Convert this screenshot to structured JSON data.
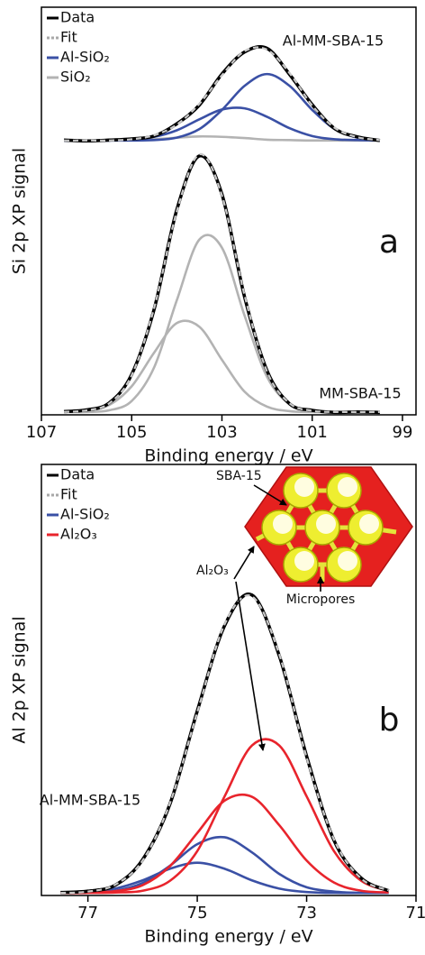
{
  "chart_data": [
    {
      "type": "line",
      "ylabel": "Si 2p XP signal",
      "xlabel": "Binding energy / eV",
      "panel_label": "a",
      "xlim": [
        107,
        98.7
      ],
      "xticks": [
        107,
        105,
        103,
        101,
        99
      ],
      "ylim": [
        0,
        100
      ],
      "legend_loc": "upper left",
      "legend": [
        {
          "name": "Data",
          "color": "#000000",
          "style": "solid"
        },
        {
          "name": "Fit",
          "color": "#a8a8a8",
          "style": "dotted"
        },
        {
          "name": "Al-SiO₂",
          "color": "#3a50a5",
          "style": "solid"
        },
        {
          "name": "SiO₂",
          "color": "#b3b3b3",
          "style": "solid"
        }
      ],
      "x": [
        106.5,
        106,
        105.5,
        105,
        104.5,
        104,
        103.5,
        103,
        102.5,
        102,
        101.5,
        101,
        100.5,
        100,
        99.5
      ],
      "spectra": [
        {
          "label": "Al-MM-SBA-15",
          "series": [
            {
              "color": "#b3b3b3",
              "style": "solid",
              "values": [
                67.3,
                67.3,
                67.3,
                67.4,
                67.6,
                68.0,
                68.3,
                68.2,
                67.9,
                67.5,
                67.4,
                67.3,
                67.3,
                67.3,
                67.3
              ]
            },
            {
              "color": "#3a50a5",
              "style": "solid",
              "values": [
                67.3,
                67.3,
                67.3,
                67.3,
                67.4,
                68.0,
                70.1,
                74.8,
                80.7,
                83.6,
                80.7,
                74.8,
                70.1,
                68.0,
                67.4
              ]
            },
            {
              "color": "#3a50a5",
              "style": "solid",
              "values": [
                67.3,
                67.3,
                67.3,
                67.5,
                68.2,
                69.8,
                72.5,
                74.9,
                75.2,
                73.1,
                70.3,
                68.4,
                67.6,
                67.4,
                67.3
              ]
            },
            {
              "color": "#000000",
              "style": "solid",
              "values": [
                67.4,
                67.2,
                67.4,
                67.7,
                68.4,
                71.4,
                76.0,
                83.6,
                89.0,
                89.9,
                83.5,
                76.1,
                70.2,
                68.2,
                67.3
              ]
            },
            {
              "color": "#a8a8a8",
              "style": "dotted",
              "values": [
                67.3,
                67.3,
                67.3,
                67.6,
                68.6,
                71.2,
                76.3,
                83.3,
                89.2,
                89.6,
                83.8,
                75.9,
                70.4,
                68.1,
                67.4
              ]
            }
          ]
        },
        {
          "label": "MM-SBA-15",
          "series": [
            {
              "color": "#b3b3b3",
              "style": "solid",
              "values": [
                0.7,
                0.7,
                1.1,
                3.4,
                11.7,
                28.1,
                43.0,
                41.0,
                24.4,
                9.3,
                2.6,
                1.0,
                0.7,
                0.7,
                0.7
              ]
            },
            {
              "color": "#b3b3b3",
              "style": "solid",
              "values": [
                0.7,
                1.0,
                2.4,
                7.0,
                15.3,
                22.5,
                21.6,
                13.5,
                5.7,
                2.0,
                0.9,
                0.7,
                0.7,
                0.7,
                0.7
              ]
            },
            {
              "color": "#000000",
              "style": "solid",
              "values": [
                0.8,
                1.2,
                2.9,
                9.9,
                26.0,
                50.3,
                63.5,
                54.1,
                29.0,
                10.8,
                2.7,
                1.1,
                0.6,
                0.7,
                0.6
              ]
            },
            {
              "color": "#a8a8a8",
              "style": "dotted",
              "values": [
                0.7,
                1.1,
                2.8,
                9.7,
                26.3,
                49.9,
                63.9,
                53.8,
                29.4,
                10.6,
                2.8,
                1.0,
                0.7,
                0.7,
                0.7
              ]
            }
          ]
        }
      ]
    },
    {
      "type": "line",
      "ylabel": "Al 2p XP signal",
      "xlabel": "Binding energy / eV",
      "panel_label": "b",
      "xlim": [
        77.85,
        71
      ],
      "xticks": [
        77,
        75,
        73,
        71
      ],
      "ylim": [
        0,
        100
      ],
      "legend_loc": "upper left",
      "legend": [
        {
          "name": "Data",
          "color": "#000000",
          "style": "solid"
        },
        {
          "name": "Fit",
          "color": "#a8a8a8",
          "style": "dotted"
        },
        {
          "name": "Al-SiO₂",
          "color": "#3a50a5",
          "style": "solid"
        },
        {
          "name": "Al₂O₃",
          "color": "#e8242c",
          "style": "solid"
        }
      ],
      "inset_labels": [
        "SBA-15",
        "Al₂O₃",
        "Micropores"
      ],
      "x": [
        77.5,
        77,
        76.5,
        76,
        75.5,
        75,
        74.5,
        74,
        73.5,
        73,
        72.5,
        72,
        71.5
      ],
      "spectra": [
        {
          "label": "Al-MM-SBA-15",
          "series": [
            {
              "color": "#3a50a5",
              "style": "solid",
              "values": [
                0.6,
                0.8,
                1.6,
                3.5,
                6.2,
                7.6,
                6.2,
                3.5,
                1.6,
                0.8,
                0.6,
                0.6,
                0.6
              ]
            },
            {
              "color": "#3a50a5",
              "style": "solid",
              "values": [
                0.6,
                0.7,
                1.1,
                2.9,
                6.9,
                11.9,
                13.5,
                10.0,
                5.0,
                1.9,
                0.9,
                0.6,
                0.6
              ]
            },
            {
              "color": "#e8242c",
              "style": "solid",
              "values": [
                0.6,
                0.7,
                1.0,
                2.4,
                6.8,
                14.5,
                22.0,
                22.9,
                16.3,
                8.1,
                3.0,
                1.1,
                0.7
              ]
            },
            {
              "color": "#e8242c",
              "style": "solid",
              "values": [
                0.6,
                0.6,
                0.7,
                1.1,
                3.4,
                10.3,
                23.0,
                34.8,
                34.8,
                23.0,
                10.3,
                3.4,
                1.1
              ]
            },
            {
              "color": "#000000",
              "style": "solid",
              "values": [
                0.7,
                1.0,
                2.4,
                8.3,
                21.2,
                42.8,
                62.6,
                69.7,
                55.6,
                32.3,
                12.8,
                4.0,
                1.1
              ]
            },
            {
              "color": "#a8a8a8",
              "style": "dotted",
              "values": [
                0.6,
                0.9,
                2.5,
                8.1,
                21.4,
                42.5,
                62.9,
                69.4,
                55.9,
                32.0,
                13.0,
                3.9,
                1.2
              ]
            }
          ]
        }
      ]
    }
  ]
}
